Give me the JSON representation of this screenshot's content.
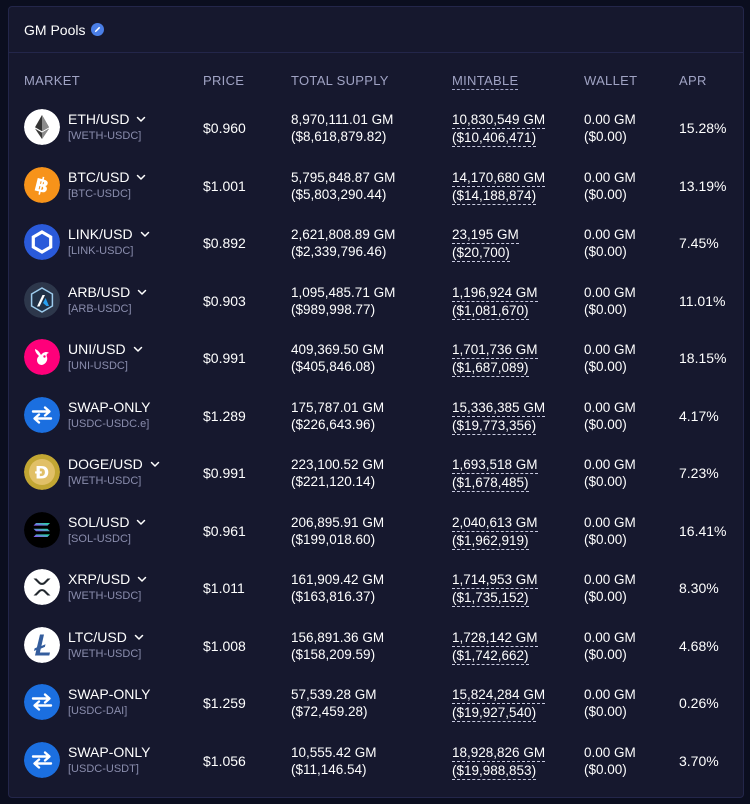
{
  "panel": {
    "title": "GM Pools",
    "title_icon": "pencil-badge-icon"
  },
  "columns": {
    "market": "MARKET",
    "price": "PRICE",
    "total_supply": "TOTAL SUPPLY",
    "mintable": "MINTABLE",
    "wallet": "WALLET",
    "apr": "APR"
  },
  "rows": [
    {
      "name": "ETH/USD",
      "pair": "[WETH-USDC]",
      "icon": "eth-icon",
      "icon_color": "#ffffff",
      "has_chevron": true,
      "price": "$0.960",
      "supply_gm": "8,970,111.01 GM",
      "supply_usd": "($8,618,879.82)",
      "mint_gm": "10,830,549 GM",
      "mint_usd": "($10,406,471)",
      "wallet_gm": "0.00 GM",
      "wallet_usd": "($0.00)",
      "apr": "15.28%"
    },
    {
      "name": "BTC/USD",
      "pair": "[BTC-USDC]",
      "icon": "btc-icon",
      "icon_color": "#f7931a",
      "has_chevron": true,
      "price": "$1.001",
      "supply_gm": "5,795,848.87 GM",
      "supply_usd": "($5,803,290.44)",
      "mint_gm": "14,170,680 GM",
      "mint_usd": "($14,188,874)",
      "wallet_gm": "0.00 GM",
      "wallet_usd": "($0.00)",
      "apr": "13.19%"
    },
    {
      "name": "LINK/USD",
      "pair": "[LINK-USDC]",
      "icon": "link-icon",
      "icon_color": "#2a5ada",
      "has_chevron": true,
      "price": "$0.892",
      "supply_gm": "2,621,808.89 GM",
      "supply_usd": "($2,339,796.46)",
      "mint_gm": "23,195 GM",
      "mint_usd": "($20,700)",
      "wallet_gm": "0.00 GM",
      "wallet_usd": "($0.00)",
      "apr": "7.45%"
    },
    {
      "name": "ARB/USD",
      "pair": "[ARB-USDC]",
      "icon": "arb-icon",
      "icon_color": "#2d374b",
      "has_chevron": true,
      "price": "$0.903",
      "supply_gm": "1,095,485.71 GM",
      "supply_usd": "($989,998.77)",
      "mint_gm": "1,196,924 GM",
      "mint_usd": "($1,081,670)",
      "wallet_gm": "0.00 GM",
      "wallet_usd": "($0.00)",
      "apr": "11.01%"
    },
    {
      "name": "UNI/USD",
      "pair": "[UNI-USDC]",
      "icon": "uni-icon",
      "icon_color": "#ff007a",
      "has_chevron": true,
      "price": "$0.991",
      "supply_gm": "409,369.50 GM",
      "supply_usd": "($405,846.08)",
      "mint_gm": "1,701,736 GM",
      "mint_usd": "($1,687,089)",
      "wallet_gm": "0.00 GM",
      "wallet_usd": "($0.00)",
      "apr": "18.15%"
    },
    {
      "name": "SWAP-ONLY",
      "pair": "[USDC-USDC.e]",
      "icon": "swap-icon",
      "icon_color": "#1b6fe0",
      "has_chevron": false,
      "price": "$1.289",
      "supply_gm": "175,787.01 GM",
      "supply_usd": "($226,643.96)",
      "mint_gm": "15,336,385 GM",
      "mint_usd": "($19,773,356)",
      "wallet_gm": "0.00 GM",
      "wallet_usd": "($0.00)",
      "apr": "4.17%"
    },
    {
      "name": "DOGE/USD",
      "pair": "[WETH-USDC]",
      "icon": "doge-icon",
      "icon_color": "#c2a633",
      "has_chevron": true,
      "price": "$0.991",
      "supply_gm": "223,100.52 GM",
      "supply_usd": "($221,120.14)",
      "mint_gm": "1,693,518 GM",
      "mint_usd": "($1,678,485)",
      "wallet_gm": "0.00 GM",
      "wallet_usd": "($0.00)",
      "apr": "7.23%"
    },
    {
      "name": "SOL/USD",
      "pair": "[SOL-USDC]",
      "icon": "sol-icon",
      "icon_color": "#000000",
      "has_chevron": true,
      "price": "$0.961",
      "supply_gm": "206,895.91 GM",
      "supply_usd": "($199,018.60)",
      "mint_gm": "2,040,613 GM",
      "mint_usd": "($1,962,919)",
      "wallet_gm": "0.00 GM",
      "wallet_usd": "($0.00)",
      "apr": "16.41%"
    },
    {
      "name": "XRP/USD",
      "pair": "[WETH-USDC]",
      "icon": "xrp-icon",
      "icon_color": "#ffffff",
      "has_chevron": true,
      "price": "$1.011",
      "supply_gm": "161,909.42 GM",
      "supply_usd": "($163,816.37)",
      "mint_gm": "1,714,953 GM",
      "mint_usd": "($1,735,152)",
      "wallet_gm": "0.00 GM",
      "wallet_usd": "($0.00)",
      "apr": "8.30%"
    },
    {
      "name": "LTC/USD",
      "pair": "[WETH-USDC]",
      "icon": "ltc-icon",
      "icon_color": "#ffffff",
      "has_chevron": true,
      "price": "$1.008",
      "supply_gm": "156,891.36 GM",
      "supply_usd": "($158,209.59)",
      "mint_gm": "1,728,142 GM",
      "mint_usd": "($1,742,662)",
      "wallet_gm": "0.00 GM",
      "wallet_usd": "($0.00)",
      "apr": "4.68%"
    },
    {
      "name": "SWAP-ONLY",
      "pair": "[USDC-DAI]",
      "icon": "swap-icon",
      "icon_color": "#1b6fe0",
      "has_chevron": false,
      "price": "$1.259",
      "supply_gm": "57,539.28 GM",
      "supply_usd": "($72,459.28)",
      "mint_gm": "15,824,284 GM",
      "mint_usd": "($19,927,540)",
      "wallet_gm": "0.00 GM",
      "wallet_usd": "($0.00)",
      "apr": "0.26%"
    },
    {
      "name": "SWAP-ONLY",
      "pair": "[USDC-USDT]",
      "icon": "swap-icon",
      "icon_color": "#1b6fe0",
      "has_chevron": false,
      "price": "$1.056",
      "supply_gm": "10,555.42 GM",
      "supply_usd": "($11,146.54)",
      "mint_gm": "18,928,826 GM",
      "mint_usd": "($19,988,853)",
      "wallet_gm": "0.00 GM",
      "wallet_usd": "($0.00)",
      "apr": "3.70%"
    }
  ]
}
